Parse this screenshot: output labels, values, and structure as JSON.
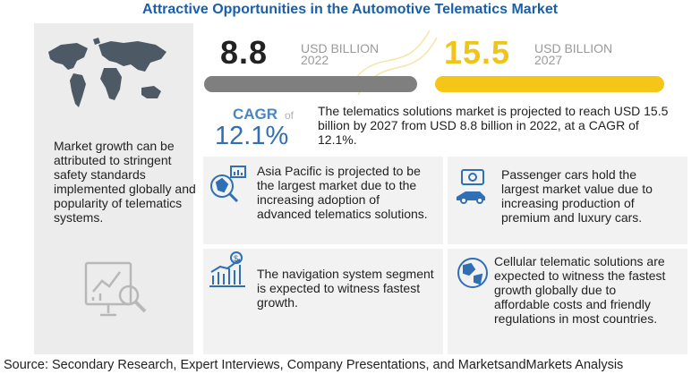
{
  "title": "Attractive Opportunities in the Automotive Telematics  Market",
  "colors": {
    "title": "#1a5fa8",
    "bar_2022": "#7f7f7f",
    "bar_2027": "#f5c518",
    "value_2027": "#f0c419",
    "cagr": "#2f6fb5"
  },
  "chart_data": {
    "type": "bar",
    "categories": [
      "2022",
      "2027"
    ],
    "values": [
      8.8,
      15.5
    ],
    "unit": "USD BILLION",
    "cagr": "12.1%"
  },
  "market": {
    "value_2022": "8.8",
    "unit_2022": "USD BILLION",
    "year_2022": "2022",
    "value_2027": "15.5",
    "unit_2027": "USD BILLION",
    "year_2027": "2027",
    "cagr_label": "CAGR",
    "cagr_of": "of",
    "cagr_value": "12.1%",
    "summary": "The telematics solutions market is projected to reach USD 15.5  billion by 2027 from USD 8.8 billion in 2022, at a CAGR of 12.1%."
  },
  "left": {
    "map_icon": "world-map-icon",
    "text": "Market growth can be attributed to stringent safety standards implemented globally and popularity of telematics systems.",
    "report_icon": "report-analysis-icon"
  },
  "highlights": [
    {
      "icon": "region-analysis-icon",
      "text": "Asia Pacific is projected to be the largest market due to the increasing adoption of advanced telematics solutions."
    },
    {
      "icon": "passenger-car-money-icon",
      "text": "Passenger cars hold the largest market value due to increasing production of premium and luxury cars."
    },
    {
      "icon": "growth-chart-icon",
      "text": "The navigation system segment is expected to witness fastest growth."
    },
    {
      "icon": "globe-network-icon",
      "text": "Cellular telematic solutions are expected to witness the fastest growth globally due to affordable costs and friendly regulations in most countries."
    }
  ],
  "source": "Source: Secondary Research, Expert Interviews, Company Presentations, and MarketsandMarkets Analysis"
}
